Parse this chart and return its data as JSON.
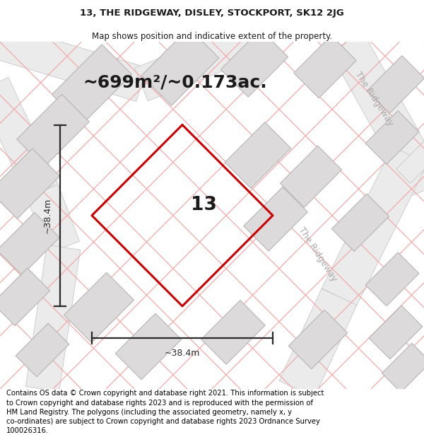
{
  "title": "13, THE RIDGEWAY, DISLEY, STOCKPORT, SK12 2JG",
  "subtitle": "Map shows position and indicative extent of the property.",
  "area_text": "~699m²/~0.173ac.",
  "plot_number": "13",
  "dim_width": "~38.4m",
  "dim_height": "~38.4m",
  "road_label_1": "The Ridgeway",
  "road_label_2": "The Ridgeway",
  "footer": "Contains OS data © Crown copyright and database right 2021. This information is subject to Crown copyright and database rights 2023 and is reproduced with the permission of HM Land Registry. The polygons (including the associated geometry, namely x, y co-ordinates) are subject to Crown copyright and database rights 2023 Ordnance Survey 100026316.",
  "bg_color": "#f8f6f6",
  "title_fontsize": 9.5,
  "subtitle_fontsize": 8.5,
  "area_fontsize": 18,
  "plot_num_fontsize": 19,
  "dim_fontsize": 9,
  "footer_fontsize": 7.2,
  "road_fontsize": 8,
  "diamond_color": "#cc0000",
  "diamond_lw": 2.2,
  "building_color": "#dcdada",
  "building_edge": "#b8b4b4",
  "pink_line_color": "#f2aaaa",
  "road_outline_color": "#cccccc",
  "text_color": "#1a1a1a",
  "dim_color": "#2a2a2a"
}
